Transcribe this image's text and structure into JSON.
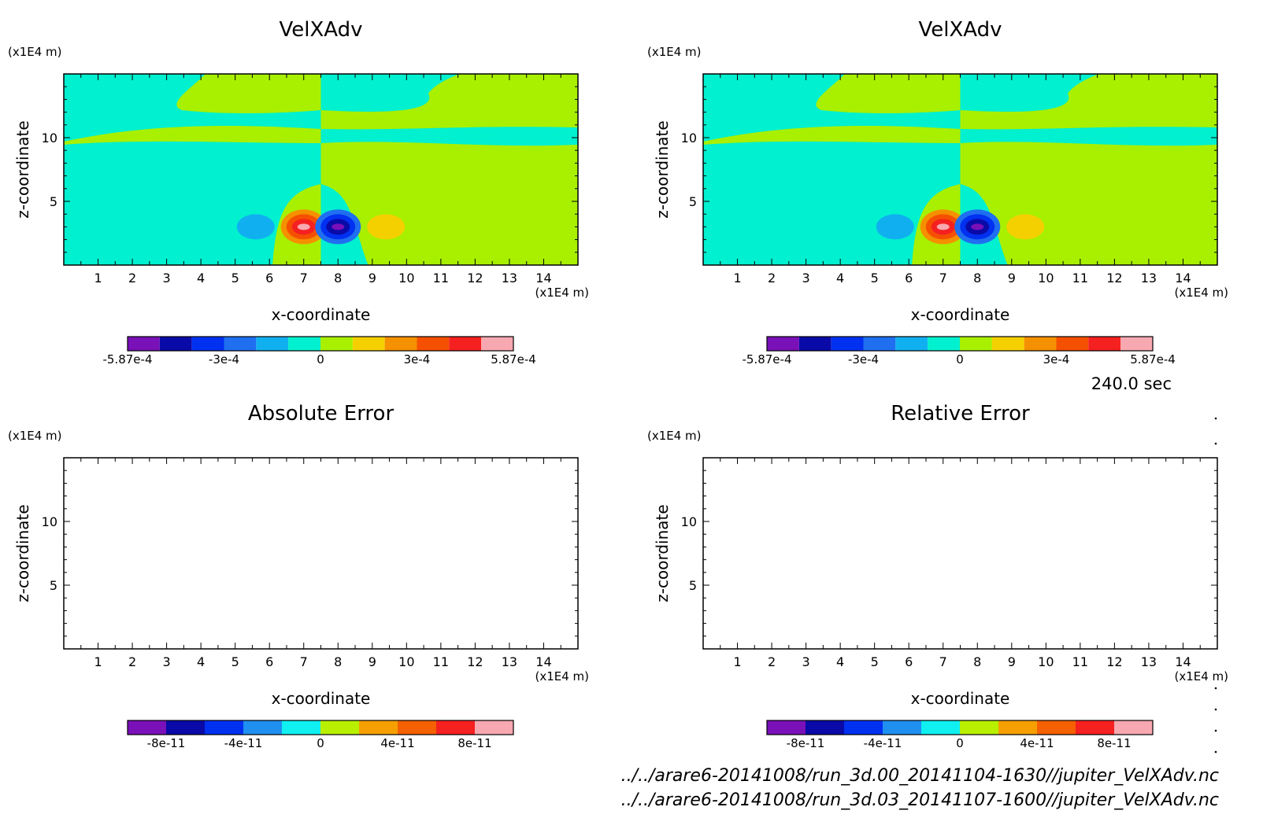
{
  "time_label": "240.0 sec",
  "file_paths": [
    "../../arare6-20141008/run_3d.00_20141104-1630//jupiter_VelXAdv.nc",
    "../../arare6-20141008/run_3d.03_20141107-1600//jupiter_VelXAdv.nc"
  ],
  "chart_data": [
    {
      "type": "heatmap",
      "title": "VelXAdv",
      "xlabel": "x-coordinate",
      "ylabel": "z-coordinate",
      "x_unit": "(x1E4 m)",
      "y_unit": "(x1E4 m)",
      "xticks": [
        "1",
        "2",
        "3",
        "4",
        "5",
        "6",
        "7",
        "8",
        "9",
        "10",
        "11",
        "12",
        "13",
        "14"
      ],
      "yticks": [
        "5",
        "10"
      ],
      "xlim": [
        0,
        15
      ],
      "ylim": [
        0,
        15
      ],
      "filled": true,
      "colorbar": {
        "labels": [
          "-5.87e-4",
          "-3e-4",
          "0",
          "3e-4",
          "5.87e-4"
        ],
        "levels": 12,
        "colors": [
          "#7a10b8",
          "#0a0aa8",
          "#0030f0",
          "#1f6ff0",
          "#10b0f0",
          "#00f0d0",
          "#a8f000",
          "#f5d000",
          "#f59000",
          "#f55000",
          "#f52020",
          "#f8a8b0"
        ]
      }
    },
    {
      "type": "heatmap",
      "title": "VelXAdv",
      "xlabel": "x-coordinate",
      "ylabel": "z-coordinate",
      "x_unit": "(x1E4 m)",
      "y_unit": "(x1E4 m)",
      "xticks": [
        "1",
        "2",
        "3",
        "4",
        "5",
        "6",
        "7",
        "8",
        "9",
        "10",
        "11",
        "12",
        "13",
        "14"
      ],
      "yticks": [
        "5",
        "10"
      ],
      "xlim": [
        0,
        15
      ],
      "ylim": [
        0,
        15
      ],
      "filled": true,
      "colorbar": {
        "labels": [
          "-5.87e-4",
          "-3e-4",
          "0",
          "3e-4",
          "5.87e-4"
        ],
        "levels": 12,
        "colors": [
          "#7a10b8",
          "#0a0aa8",
          "#0030f0",
          "#1f6ff0",
          "#10b0f0",
          "#00f0d0",
          "#a8f000",
          "#f5d000",
          "#f59000",
          "#f55000",
          "#f52020",
          "#f8a8b0"
        ]
      }
    },
    {
      "type": "heatmap",
      "title": "Absolute Error",
      "xlabel": "x-coordinate",
      "ylabel": "z-coordinate",
      "x_unit": "(x1E4 m)",
      "y_unit": "(x1E4 m)",
      "xticks": [
        "1",
        "2",
        "3",
        "4",
        "5",
        "6",
        "7",
        "8",
        "9",
        "10",
        "11",
        "12",
        "13",
        "14"
      ],
      "yticks": [
        "5",
        "10"
      ],
      "xlim": [
        0,
        15
      ],
      "ylim": [
        0,
        15
      ],
      "filled": false,
      "colorbar": {
        "labels": [
          "-8e-11",
          "-4e-11",
          "0",
          "4e-11",
          "8e-11"
        ],
        "levels": 10,
        "colors": [
          "#7a10b8",
          "#0a0aa8",
          "#0030f0",
          "#1f8ff0",
          "#10f0f0",
          "#b8f000",
          "#f5a000",
          "#f56000",
          "#f52020",
          "#f8a8b0"
        ]
      }
    },
    {
      "type": "heatmap",
      "title": "Relative Error",
      "xlabel": "x-coordinate",
      "ylabel": "z-coordinate",
      "x_unit": "(x1E4 m)",
      "y_unit": "(x1E4 m)",
      "xticks": [
        "1",
        "2",
        "3",
        "4",
        "5",
        "6",
        "7",
        "8",
        "9",
        "10",
        "11",
        "12",
        "13",
        "14"
      ],
      "yticks": [
        "5",
        "10"
      ],
      "xlim": [
        0,
        15
      ],
      "ylim": [
        0,
        15
      ],
      "filled": false,
      "colorbar": {
        "labels": [
          "-8e-11",
          "-4e-11",
          "0",
          "4e-11",
          "8e-11"
        ],
        "levels": 10,
        "colors": [
          "#7a10b8",
          "#0a0aa8",
          "#0030f0",
          "#1f8ff0",
          "#10f0f0",
          "#b8f000",
          "#f5a000",
          "#f56000",
          "#f52020",
          "#f8a8b0"
        ]
      }
    }
  ]
}
